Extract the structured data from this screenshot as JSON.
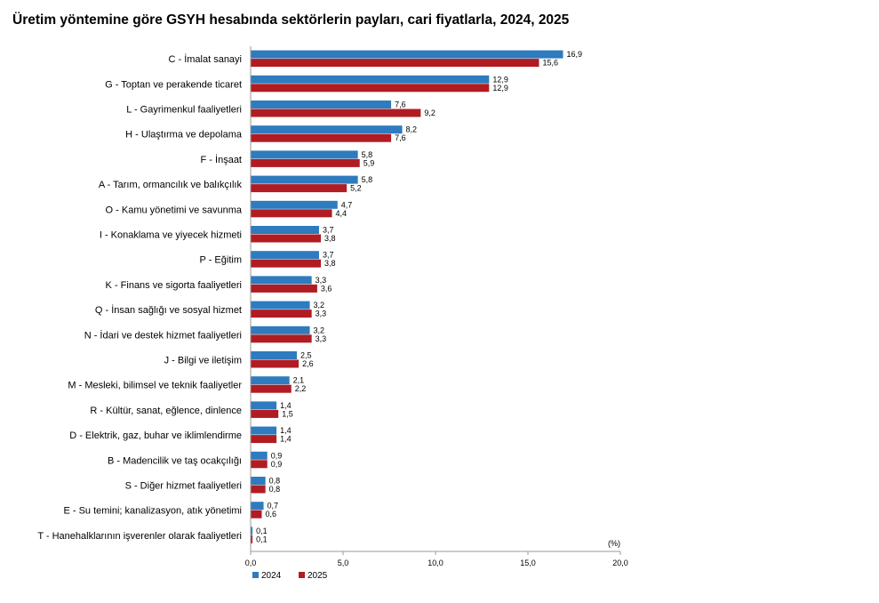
{
  "title": "Üretim yöntemine göre GSYH hesabında sektörlerin payları, cari fiyatlarla, 2024, 2025",
  "chart_data": {
    "type": "bar",
    "orientation": "horizontal",
    "title": "Üretim yöntemine göre GSYH hesabında sektörlerin payları, cari fiyatlarla, 2024, 2025",
    "unit_label": "(%)",
    "xlim": [
      0,
      20
    ],
    "ticks": [
      "0,0",
      "5,0",
      "10,0",
      "15,0",
      "20,0"
    ],
    "tick_values": [
      0,
      5,
      10,
      15,
      20
    ],
    "grid": false,
    "legend_position": "bottom-left",
    "colors": {
      "2024": "#2e7bbf",
      "2025": "#b01c22"
    },
    "categories": [
      "C - İmalat sanayi",
      "G - Toptan ve perakende ticaret",
      "L - Gayrimenkul faaliyetleri",
      "H - Ulaştırma ve depolama",
      "F - İnşaat",
      "A - Tarım, ormancılık ve balıkçılık",
      "O - Kamu yönetimi ve savunma",
      "I - Konaklama ve yiyecek hizmeti",
      "P - Eğitim",
      "K - Finans ve sigorta faaliyetleri",
      "Q - İnsan sağlığı ve sosyal hizmet",
      "N - İdari ve destek hizmet faaliyetleri",
      "J - Bilgi ve iletişim",
      "M - Mesleki, bilimsel ve teknik faaliyetler",
      "R - Kültür, sanat, eğlence, dinlence",
      "D - Elektrik, gaz, buhar ve iklimlendirme",
      "B - Madencilik ve taş ocakçılığı",
      "S - Diğer hizmet faaliyetleri",
      "E - Su temini; kanalizasyon, atık yönetimi",
      "T - Hanehalklarının işverenler olarak faaliyetleri"
    ],
    "series": [
      {
        "name": "2024",
        "values": [
          16.9,
          12.9,
          7.6,
          8.2,
          5.8,
          5.8,
          4.7,
          3.7,
          3.7,
          3.3,
          3.2,
          3.2,
          2.5,
          2.1,
          1.4,
          1.4,
          0.9,
          0.8,
          0.7,
          0.1
        ],
        "labels": [
          "16,9",
          "12,9",
          "7,6",
          "8,2",
          "5,8",
          "5,8",
          "4,7",
          "3,7",
          "3,7",
          "3,3",
          "3,2",
          "3,2",
          "2,5",
          "2,1",
          "1,4",
          "1,4",
          "0,9",
          "0,8",
          "0,7",
          "0,1"
        ]
      },
      {
        "name": "2025",
        "values": [
          15.6,
          12.9,
          9.2,
          7.6,
          5.9,
          5.2,
          4.4,
          3.8,
          3.8,
          3.6,
          3.3,
          3.3,
          2.6,
          2.2,
          1.5,
          1.4,
          0.9,
          0.8,
          0.6,
          0.1
        ],
        "labels": [
          "15,6",
          "12,9",
          "9,2",
          "7,6",
          "5,9",
          "5,2",
          "4,4",
          "3,8",
          "3,8",
          "3,6",
          "3,3",
          "3,3",
          "2,6",
          "2,2",
          "1,5",
          "1,4",
          "0,9",
          "0,8",
          "0,6",
          "0,1"
        ]
      }
    ]
  }
}
